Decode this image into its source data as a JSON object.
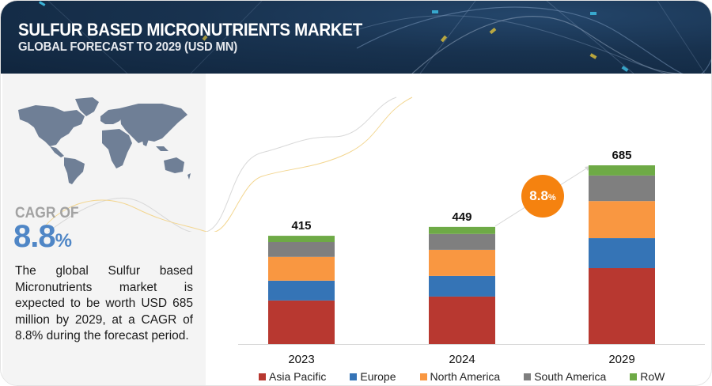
{
  "header": {
    "title": "SULFUR BASED MICRONUTRIENTS MARKET",
    "subtitle": "GLOBAL FORECAST TO 2029 (USD MN)"
  },
  "summary": {
    "cagr_label": "CAGR OF",
    "cagr_number": "8.8",
    "cagr_percent_sign": "%",
    "description": "The global Sulfur based Micronutrients market is expected to be worth USD 685 million by 2029, at a CAGR of 8.8% during the forecast period."
  },
  "badge": {
    "number": "8.8",
    "percent_sign": "%"
  },
  "colors": {
    "Asia Pacific": "#b83830",
    "Europe": "#3574b6",
    "North America": "#f99741",
    "South America": "#7f7f7f",
    "RoW": "#6eaa46",
    "badge": "#f5820f",
    "cagr": "#4f86c6",
    "header": "#18324f"
  },
  "chart_data": {
    "type": "bar",
    "stacked": true,
    "title": "Sulfur Based Micronutrients Market, Global Forecast to 2029 (USD MN)",
    "xlabel": "",
    "ylabel": "USD MN",
    "categories": [
      "2023",
      "2024",
      "2029"
    ],
    "totals": [
      415,
      449,
      685
    ],
    "series": [
      {
        "name": "Asia Pacific",
        "values": [
          167,
          182,
          291
        ]
      },
      {
        "name": "Europe",
        "values": [
          76,
          79,
          115
        ]
      },
      {
        "name": "North America",
        "values": [
          91,
          100,
          142
        ]
      },
      {
        "name": "South America",
        "values": [
          57,
          61,
          98
        ]
      },
      {
        "name": "RoW",
        "values": [
          24,
          27,
          39
        ]
      }
    ],
    "ylim": [
      0,
      685
    ],
    "grid": false,
    "legend": "bottom",
    "annotation": "8.8% CAGR (2024–2029)"
  }
}
